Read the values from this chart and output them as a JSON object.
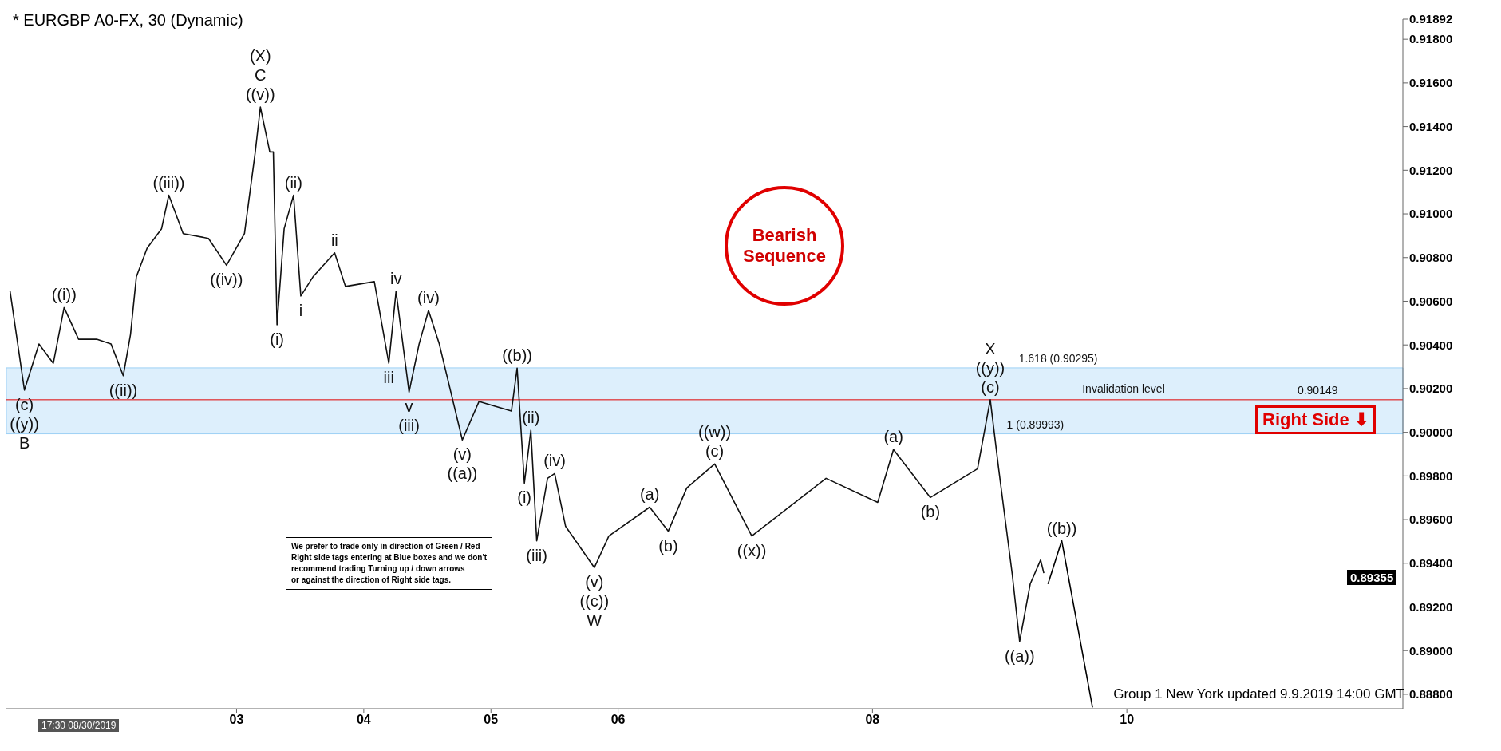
{
  "chart_data": {
    "type": "line",
    "title": "* EURGBP A0-FX, 30 (Dynamic)",
    "series": [
      {
        "color": "#111111",
        "x": [
          1.219,
          1.332,
          1.446,
          1.559,
          1.644,
          1.758,
          1.9,
          2.013,
          2.109,
          2.166,
          2.212,
          2.297,
          2.41,
          2.467,
          2.58,
          2.779,
          2.921,
          3.062,
          3.147,
          3.187,
          3.261,
          3.289,
          3.318,
          3.374,
          3.448,
          3.505,
          3.601,
          3.771,
          3.856,
          4.083,
          4.197,
          4.254,
          4.356,
          4.435,
          4.509,
          4.594,
          4.775,
          4.906,
          5.161,
          5.206,
          5.263,
          5.314,
          5.36,
          5.445,
          5.501,
          5.587,
          5.813,
          5.927,
          6.248,
          6.394,
          6.54,
          6.759,
          7.051,
          7.635,
          8.041,
          8.165,
          8.455,
          8.826,
          8.926,
          8.992,
          9.099,
          9.157,
          9.24,
          9.322,
          9.347
        ],
        "values": [
          0.90646,
          0.90193,
          0.90404,
          0.90316,
          0.90571,
          0.90426,
          0.90426,
          0.90404,
          0.90259,
          0.90448,
          0.90712,
          0.90844,
          0.90932,
          0.91086,
          0.9091,
          0.90888,
          0.90765,
          0.9091,
          0.91284,
          0.9149,
          0.91284,
          0.91284,
          0.90492,
          0.90932,
          0.91086,
          0.90624,
          0.90712,
          0.90822,
          0.90668,
          0.9069,
          0.90316,
          0.90646,
          0.90184,
          0.90404,
          0.90558,
          0.90404,
          0.89965,
          0.90141,
          0.90097,
          0.90294,
          0.89767,
          0.90009,
          0.89503,
          0.89789,
          0.89811,
          0.89569,
          0.8938,
          0.89525,
          0.89657,
          0.89547,
          0.89745,
          0.89855,
          0.89525,
          0.89789,
          0.89679,
          0.89921,
          0.89701,
          0.89833,
          0.90149,
          0.89833,
          0.89349,
          0.89042,
          0.89305,
          0.89415,
          0.89355
        ]
      },
      {
        "color": "#000000",
        "x": [
          9.38,
          9.488,
          9.73
        ],
        "values": [
          0.89305,
          0.89503,
          0.8874
        ]
      }
    ],
    "xlim": [
      1.19,
      12.17
    ],
    "xticks": [
      {
        "value": 3,
        "label": "03"
      },
      {
        "value": 4,
        "label": "04"
      },
      {
        "value": 5,
        "label": "05"
      },
      {
        "value": 6,
        "label": "06"
      },
      {
        "value": 8,
        "label": "08"
      },
      {
        "value": 10,
        "label": "10"
      }
    ],
    "ylim": [
      0.88734,
      0.91892
    ],
    "yticks": [
      {
        "value": 0.888,
        "label": "0.88800"
      },
      {
        "value": 0.89,
        "label": "0.89000"
      },
      {
        "value": 0.892,
        "label": "0.89200"
      },
      {
        "value": 0.894,
        "label": "0.89400"
      },
      {
        "value": 0.896,
        "label": "0.89600"
      },
      {
        "value": 0.898,
        "label": "0.89800"
      },
      {
        "value": 0.9,
        "label": "0.90000"
      },
      {
        "value": 0.902,
        "label": "0.90200"
      },
      {
        "value": 0.904,
        "label": "0.90400"
      },
      {
        "value": 0.906,
        "label": "0.90600"
      },
      {
        "value": 0.908,
        "label": "0.90800"
      },
      {
        "value": 0.91,
        "label": "0.91000"
      },
      {
        "value": 0.912,
        "label": "0.91200"
      },
      {
        "value": 0.914,
        "label": "0.91400"
      },
      {
        "value": 0.916,
        "label": "0.91600"
      },
      {
        "value": 0.918,
        "label": "0.91800"
      },
      {
        "value": 0.91892,
        "label": "0.91892"
      }
    ],
    "ref_lines": [
      {
        "axis": "y",
        "value": 0.90149,
        "label": "Invalidation level",
        "color": "#e00000"
      }
    ],
    "bands": [
      {
        "axis": "y",
        "from": 0.89993,
        "to": 0.90295,
        "color": "#9dd0f5"
      }
    ],
    "grid": false,
    "legend": false,
    "marker": "none",
    "line_style": "solid",
    "annotations": [
      {
        "text": "(c)",
        "x": 1.332,
        "y": 0.90193
      },
      {
        "text": "((y))",
        "x": 1.332,
        "y": 0.90193
      },
      {
        "text": "B",
        "x": 1.332,
        "y": 0.90193
      },
      {
        "text": "((i))",
        "x": 1.644,
        "y": 0.90571
      },
      {
        "text": "((ii))",
        "x": 2.109,
        "y": 0.90259
      },
      {
        "text": "((iii))",
        "x": 2.467,
        "y": 0.91086
      },
      {
        "text": "((iv))",
        "x": 2.921,
        "y": 0.90765
      },
      {
        "text": "((v))",
        "x": 3.187,
        "y": 0.9149
      },
      {
        "text": "C",
        "x": 3.187,
        "y": 0.9149
      },
      {
        "text": "(X)",
        "x": 3.187,
        "y": 0.9149
      },
      {
        "text": "(i)",
        "x": 3.318,
        "y": 0.90492
      },
      {
        "text": "(ii)",
        "x": 3.448,
        "y": 0.91086
      },
      {
        "text": "i",
        "x": 3.505,
        "y": 0.90624
      },
      {
        "text": "ii",
        "x": 3.771,
        "y": 0.90822
      },
      {
        "text": "iii",
        "x": 4.197,
        "y": 0.90316
      },
      {
        "text": "iv",
        "x": 4.254,
        "y": 0.90646
      },
      {
        "text": "v",
        "x": 4.356,
        "y": 0.90184
      },
      {
        "text": "(iii)",
        "x": 4.356,
        "y": 0.90184
      },
      {
        "text": "(iv)",
        "x": 4.509,
        "y": 0.90558
      },
      {
        "text": "(v)",
        "x": 4.775,
        "y": 0.89965
      },
      {
        "text": "((a))",
        "x": 4.775,
        "y": 0.89965
      },
      {
        "text": "((b))",
        "x": 5.206,
        "y": 0.90294
      },
      {
        "text": "(i)",
        "x": 5.263,
        "y": 0.89767
      },
      {
        "text": "(ii)",
        "x": 5.314,
        "y": 0.90009
      },
      {
        "text": "(iii)",
        "x": 5.36,
        "y": 0.89503
      },
      {
        "text": "(iv)",
        "x": 5.501,
        "y": 0.89811
      },
      {
        "text": "(v)",
        "x": 5.813,
        "y": 0.8938
      },
      {
        "text": "((c))",
        "x": 5.813,
        "y": 0.8938
      },
      {
        "text": "W",
        "x": 5.813,
        "y": 0.8938
      },
      {
        "text": "(a)",
        "x": 6.248,
        "y": 0.89657
      },
      {
        "text": "(b)",
        "x": 6.394,
        "y": 0.89547
      },
      {
        "text": "(c)",
        "x": 6.759,
        "y": 0.89855
      },
      {
        "text": "((w))",
        "x": 6.759,
        "y": 0.89855
      },
      {
        "text": "((x))",
        "x": 7.051,
        "y": 0.89525
      },
      {
        "text": "(a)",
        "x": 8.165,
        "y": 0.89921
      },
      {
        "text": "(b)",
        "x": 8.455,
        "y": 0.89701
      },
      {
        "text": "(c)",
        "x": 8.926,
        "y": 0.90149
      },
      {
        "text": "((y))",
        "x": 8.926,
        "y": 0.90149
      },
      {
        "text": "X",
        "x": 8.926,
        "y": 0.90149
      },
      {
        "text": "((a))",
        "x": 9.157,
        "y": 0.89042
      },
      {
        "text": "((b))",
        "x": 9.488,
        "y": 0.89503
      },
      {
        "text": "1.618 (0.90295)",
        "x": 9.46,
        "y": 0.90295
      },
      {
        "text": "1 (0.89993)",
        "x": 9.28,
        "y": 0.89993
      },
      {
        "text": "0.90149",
        "x": 11.5,
        "y": 0.90149
      },
      "Bearish\nSequence",
      "Right Side ⬇",
      "We prefer to trade only in direction of Green / Red\nRight side tags entering at Blue boxes and we don't\nrecommend trading Turning up / down arrows\nor against the direction of Right side tags.",
      "Group 1 New York updated 9.9.2019 14:00 GMT",
      "17:30 08/30/2019",
      "0.89355"
    ]
  }
}
